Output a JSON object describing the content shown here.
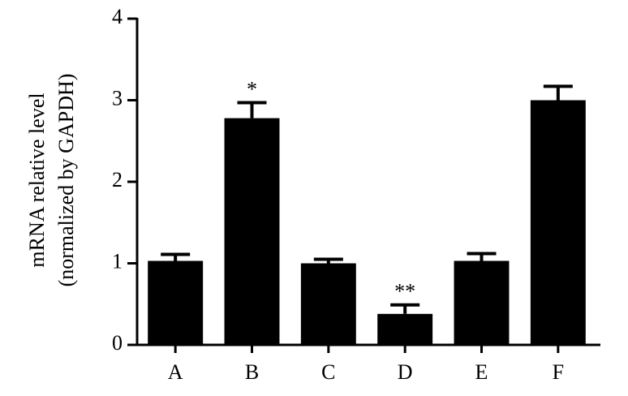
{
  "chart_data": {
    "type": "bar",
    "ylabel": [
      "mRNA relative level",
      "(normalized by GAPDH)"
    ],
    "categories": [
      "A",
      "B",
      "C",
      "D",
      "E",
      "F"
    ],
    "values": [
      1.03,
      2.78,
      1.0,
      0.38,
      1.03,
      3.0
    ],
    "errors": [
      0.08,
      0.19,
      0.05,
      0.11,
      0.09,
      0.17
    ],
    "color": "#000000",
    "ylim": [
      0,
      4
    ],
    "yticks": [
      0,
      1,
      2,
      3,
      4
    ],
    "grid": false,
    "annotations": [
      {
        "category": "B",
        "text": "*"
      },
      {
        "category": "D",
        "text": "**"
      }
    ]
  }
}
